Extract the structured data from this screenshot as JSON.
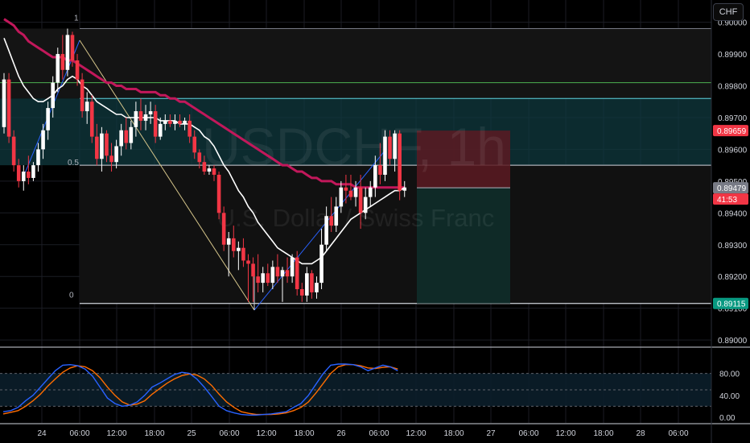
{
  "watermark": {
    "symbol": "USDCHF, 1h",
    "description": "U.S. Dollar / Swiss Franc"
  },
  "currency": "CHF",
  "colors": {
    "bg": "#000000",
    "bull": "#ffffff",
    "bear": "#f23645",
    "grid": "#1b1d24",
    "ema_fast": "#ffffff",
    "ema_slow": "#c2185b",
    "k_line": "#2962ff",
    "d_line": "#ff6d00",
    "fib_zone": "#10393f",
    "fib_line": "#5fd3e0",
    "green_line": "#4caf50",
    "stop_zone": "#5c1a22",
    "target_zone": "#0f2e2a",
    "price_badge_red": "#f23645",
    "price_badge_green": "#089981",
    "price_badge_gray": "#787b86"
  },
  "price_axis": {
    "ticks": [
      "0.90000",
      "0.89900",
      "0.89800",
      "0.89700",
      "0.89600",
      "0.89500",
      "0.89400",
      "0.89300",
      "0.89200",
      "0.89100",
      "0.89000"
    ],
    "badges": [
      {
        "label": "0.89659",
        "value": 0.89659,
        "color": "red"
      },
      {
        "label": "0.89479",
        "value": 0.89479,
        "color": "gray"
      },
      {
        "label": "41:53",
        "value": 0.89455,
        "color": "red"
      },
      {
        "label": "0.89115",
        "value": 0.89115,
        "color": "green"
      }
    ]
  },
  "time_axis": [
    "24",
    "06:00",
    "12:00",
    "18:00",
    "25",
    "06:00",
    "12:00",
    "18:00",
    "26",
    "06:00",
    "12:00",
    "18:00",
    "27",
    "06:00",
    "12:00",
    "18:00",
    "28",
    "06:00"
  ],
  "fib_labels": [
    "1",
    "0.5",
    "0"
  ],
  "stoch_axis": [
    "80.00",
    "40.00",
    "0.00"
  ],
  "chart_data": {
    "type": "candlestick",
    "timeframe": "1h",
    "y_range": [
      0.8898,
      0.9007
    ],
    "candles": [
      [
        0.8967,
        0.8984,
        0.8965,
        0.8982
      ],
      [
        0.8982,
        0.8984,
        0.8962,
        0.8964
      ],
      [
        0.8964,
        0.8966,
        0.8953,
        0.8955
      ],
      [
        0.8955,
        0.8957,
        0.8948,
        0.895
      ],
      [
        0.895,
        0.8955,
        0.8947,
        0.8953
      ],
      [
        0.8953,
        0.8958,
        0.8949,
        0.8951
      ],
      [
        0.8951,
        0.8956,
        0.895,
        0.8955
      ],
      [
        0.8955,
        0.8962,
        0.8953,
        0.896
      ],
      [
        0.896,
        0.8968,
        0.8957,
        0.8966
      ],
      [
        0.8966,
        0.8975,
        0.8963,
        0.8973
      ],
      [
        0.8973,
        0.8983,
        0.897,
        0.8981
      ],
      [
        0.8981,
        0.8992,
        0.8978,
        0.899
      ],
      [
        0.899,
        0.8996,
        0.8982,
        0.8985
      ],
      [
        0.8985,
        0.8998,
        0.8983,
        0.8996
      ],
      [
        0.8996,
        0.8997,
        0.8986,
        0.8988
      ],
      [
        0.8988,
        0.899,
        0.898,
        0.8982
      ],
      [
        0.8982,
        0.8984,
        0.897,
        0.8972
      ],
      [
        0.8972,
        0.8978,
        0.8968,
        0.8975
      ],
      [
        0.8975,
        0.8977,
        0.8962,
        0.8964
      ],
      [
        0.8964,
        0.8968,
        0.8955,
        0.8957
      ],
      [
        0.8957,
        0.8967,
        0.8953,
        0.8965
      ],
      [
        0.8965,
        0.8966,
        0.8956,
        0.8958
      ],
      [
        0.8958,
        0.8962,
        0.8953,
        0.8956
      ],
      [
        0.8956,
        0.8963,
        0.8954,
        0.8961
      ],
      [
        0.8961,
        0.8968,
        0.8958,
        0.8966
      ],
      [
        0.8966,
        0.897,
        0.896,
        0.8962
      ],
      [
        0.8962,
        0.8969,
        0.896,
        0.8967
      ],
      [
        0.8967,
        0.8975,
        0.8964,
        0.8972
      ],
      [
        0.8972,
        0.8976,
        0.8966,
        0.8969
      ],
      [
        0.8969,
        0.8974,
        0.8966,
        0.8971
      ],
      [
        0.8971,
        0.8975,
        0.8968,
        0.8972
      ],
      [
        0.8972,
        0.8974,
        0.8962,
        0.8964
      ],
      [
        0.8964,
        0.897,
        0.8963,
        0.8968
      ],
      [
        0.8968,
        0.8971,
        0.8966,
        0.8969
      ],
      [
        0.8969,
        0.8971,
        0.8967,
        0.8968
      ],
      [
        0.8968,
        0.8971,
        0.8966,
        0.8969
      ],
      [
        0.8969,
        0.8971,
        0.8967,
        0.8968
      ],
      [
        0.8968,
        0.897,
        0.8966,
        0.8969
      ],
      [
        0.8969,
        0.8971,
        0.8962,
        0.8964
      ],
      [
        0.8964,
        0.8966,
        0.8957,
        0.8959
      ],
      [
        0.8959,
        0.896,
        0.8954,
        0.8956
      ],
      [
        0.8956,
        0.8958,
        0.8952,
        0.8953
      ],
      [
        0.8953,
        0.8955,
        0.8952,
        0.8954
      ],
      [
        0.8954,
        0.8955,
        0.895,
        0.8952
      ],
      [
        0.8952,
        0.8953,
        0.8938,
        0.894
      ],
      [
        0.894,
        0.8942,
        0.8928,
        0.893
      ],
      [
        0.893,
        0.8934,
        0.892,
        0.8932
      ],
      [
        0.8932,
        0.8936,
        0.8926,
        0.8928
      ],
      [
        0.8928,
        0.8931,
        0.8922,
        0.8929
      ],
      [
        0.8929,
        0.8932,
        0.8923,
        0.8925
      ],
      [
        0.8925,
        0.8927,
        0.8912,
        0.8924
      ],
      [
        0.8924,
        0.8926,
        0.8912,
        0.892
      ],
      [
        0.892,
        0.8927,
        0.8915,
        0.8918
      ],
      [
        0.8918,
        0.8923,
        0.8915,
        0.8921
      ],
      [
        0.8921,
        0.8924,
        0.8917,
        0.8918
      ],
      [
        0.8918,
        0.8925,
        0.8916,
        0.8923
      ],
      [
        0.8923,
        0.8927,
        0.8918,
        0.892
      ],
      [
        0.892,
        0.8923,
        0.8912,
        0.8922
      ],
      [
        0.8922,
        0.8926,
        0.8918,
        0.892
      ],
      [
        0.892,
        0.8927,
        0.8918,
        0.8926
      ],
      [
        0.8926,
        0.8928,
        0.8914,
        0.8916
      ],
      [
        0.8916,
        0.8918,
        0.8912,
        0.8914
      ],
      [
        0.8914,
        0.8923,
        0.8912,
        0.8921
      ],
      [
        0.8921,
        0.8922,
        0.8913,
        0.8915
      ],
      [
        0.8915,
        0.892,
        0.8913,
        0.8918
      ],
      [
        0.8918,
        0.8935,
        0.8916,
        0.893
      ],
      [
        0.893,
        0.8942,
        0.8928,
        0.8939
      ],
      [
        0.8939,
        0.8945,
        0.8934,
        0.8936
      ],
      [
        0.8936,
        0.8945,
        0.8934,
        0.8942
      ],
      [
        0.8942,
        0.895,
        0.894,
        0.8948
      ],
      [
        0.8948,
        0.8952,
        0.8943,
        0.8947
      ],
      [
        0.8947,
        0.8952,
        0.8944,
        0.8945
      ],
      [
        0.8945,
        0.895,
        0.8942,
        0.8948
      ],
      [
        0.8948,
        0.8952,
        0.8935,
        0.894
      ],
      [
        0.894,
        0.8948,
        0.8938,
        0.8945
      ],
      [
        0.8945,
        0.895,
        0.8942,
        0.8948
      ],
      [
        0.8948,
        0.8958,
        0.8945,
        0.8955
      ],
      [
        0.8955,
        0.8962,
        0.8949,
        0.8952
      ],
      [
        0.8952,
        0.8966,
        0.895,
        0.8964
      ],
      [
        0.8964,
        0.8966,
        0.8955,
        0.8957
      ],
      [
        0.8957,
        0.8966,
        0.8953,
        0.8965
      ],
      [
        0.8965,
        0.8966,
        0.8944,
        0.8947
      ],
      [
        0.8947,
        0.895,
        0.8945,
        0.8948
      ]
    ],
    "ema_fast": [
      0.8995,
      0.8991,
      0.8987,
      0.8983,
      0.898,
      0.8978,
      0.8976,
      0.8975,
      0.8975,
      0.8976,
      0.8977,
      0.8979,
      0.898,
      0.8982,
      0.8983,
      0.8982,
      0.898,
      0.8979,
      0.8977,
      0.8975,
      0.8974,
      0.8973,
      0.8972,
      0.8971,
      0.8971,
      0.897,
      0.897,
      0.897,
      0.897,
      0.897,
      0.897,
      0.897,
      0.8969,
      0.8969,
      0.8969,
      0.8969,
      0.8968,
      0.8968,
      0.8968,
      0.8967,
      0.8966,
      0.8964,
      0.8963,
      0.8961,
      0.8958,
      0.8955,
      0.8953,
      0.895,
      0.8947,
      0.8945,
      0.8942,
      0.894,
      0.8937,
      0.8935,
      0.8933,
      0.8931,
      0.8929,
      0.8928,
      0.8927,
      0.8926,
      0.8925,
      0.8924,
      0.8924,
      0.8924,
      0.8925,
      0.8926,
      0.8928,
      0.893,
      0.8932,
      0.8934,
      0.8936,
      0.8938,
      0.8939,
      0.894,
      0.8941,
      0.8942,
      0.8943,
      0.8944,
      0.8945,
      0.8946,
      0.8947,
      0.8947,
      0.8948
    ],
    "ema_slow": [
      0.9001,
      0.9,
      0.8999,
      0.8997,
      0.8996,
      0.8994,
      0.8993,
      0.8992,
      0.8991,
      0.899,
      0.8989,
      0.8989,
      0.8989,
      0.8988,
      0.8988,
      0.8987,
      0.8986,
      0.8985,
      0.8984,
      0.8983,
      0.8982,
      0.8981,
      0.8981,
      0.898,
      0.898,
      0.8979,
      0.8979,
      0.8979,
      0.8978,
      0.8978,
      0.8978,
      0.8978,
      0.8977,
      0.8977,
      0.8976,
      0.8976,
      0.8975,
      0.8975,
      0.8974,
      0.8973,
      0.8972,
      0.8971,
      0.897,
      0.8969,
      0.8968,
      0.8967,
      0.8966,
      0.8965,
      0.8964,
      0.8963,
      0.8962,
      0.8961,
      0.896,
      0.8959,
      0.8958,
      0.8957,
      0.8956,
      0.8955,
      0.8955,
      0.8954,
      0.8953,
      0.8953,
      0.8952,
      0.8951,
      0.8951,
      0.895,
      0.895,
      0.895,
      0.8949,
      0.8949,
      0.8949,
      0.8949,
      0.8948,
      0.8948,
      0.8948,
      0.8948,
      0.8948,
      0.8948,
      0.8948,
      0.8948,
      0.8948,
      0.8948,
      0.8948
    ],
    "stoch_k": [
      10,
      12,
      18,
      30,
      40,
      55,
      70,
      85,
      95,
      96,
      94,
      88,
      75,
      55,
      35,
      25,
      20,
      22,
      28,
      40,
      55,
      62,
      70,
      78,
      82,
      80,
      70,
      55,
      38,
      20,
      12,
      8,
      5,
      4,
      4,
      5,
      6,
      8,
      10,
      18,
      25,
      40,
      60,
      80,
      95,
      97,
      97,
      96,
      92,
      85,
      90,
      95,
      92,
      85
    ],
    "stoch_d": [
      6,
      9,
      12,
      20,
      30,
      42,
      57,
      70,
      82,
      90,
      94,
      92,
      85,
      72,
      55,
      40,
      28,
      22,
      24,
      30,
      42,
      52,
      62,
      70,
      76,
      79,
      77,
      70,
      58,
      42,
      28,
      18,
      10,
      7,
      5,
      5,
      5,
      6,
      8,
      12,
      18,
      28,
      44,
      62,
      80,
      92,
      96,
      96,
      94,
      90,
      89,
      91,
      92,
      88
    ],
    "levels": {
      "fib_1": 0.8998,
      "fib_05": 0.8955,
      "fib_0": 0.89115,
      "green_level": 0.8981,
      "fib_zone_top": 0.8976,
      "stop_top": 0.89659,
      "entry": 0.89479,
      "target": 0.89115
    }
  }
}
